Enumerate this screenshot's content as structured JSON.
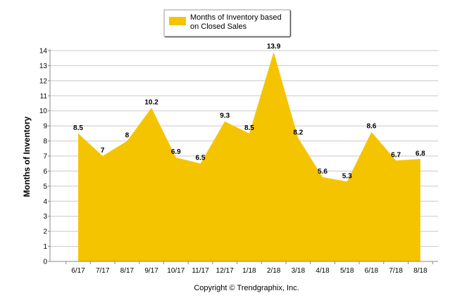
{
  "chart_data": {
    "type": "area",
    "categories": [
      "6/17",
      "7/17",
      "8/17",
      "9/17",
      "10/17",
      "11/17",
      "12/17",
      "1/18",
      "2/18",
      "3/18",
      "4/18",
      "5/18",
      "6/18",
      "7/18",
      "8/18"
    ],
    "series": [
      {
        "name": "Months of Inventory based on Closed Sales",
        "legend_lines": [
          "Months of Inventory based",
          "on Closed Sales"
        ],
        "values": [
          8.5,
          7,
          8,
          10.2,
          6.9,
          6.5,
          9.3,
          8.5,
          13.9,
          8.2,
          5.6,
          5.3,
          8.6,
          6.7,
          6.8
        ],
        "color": "#f5c400"
      }
    ],
    "ylabel": "Months of Inventory",
    "xlabel": "",
    "ylim": [
      0,
      14
    ],
    "yticks": [
      0,
      1,
      2,
      3,
      4,
      5,
      6,
      7,
      8,
      9,
      10,
      11,
      12,
      13,
      14
    ],
    "grid": true,
    "legend_position": "top-center",
    "footer": "Copyright © Trendgraphix, Inc."
  }
}
